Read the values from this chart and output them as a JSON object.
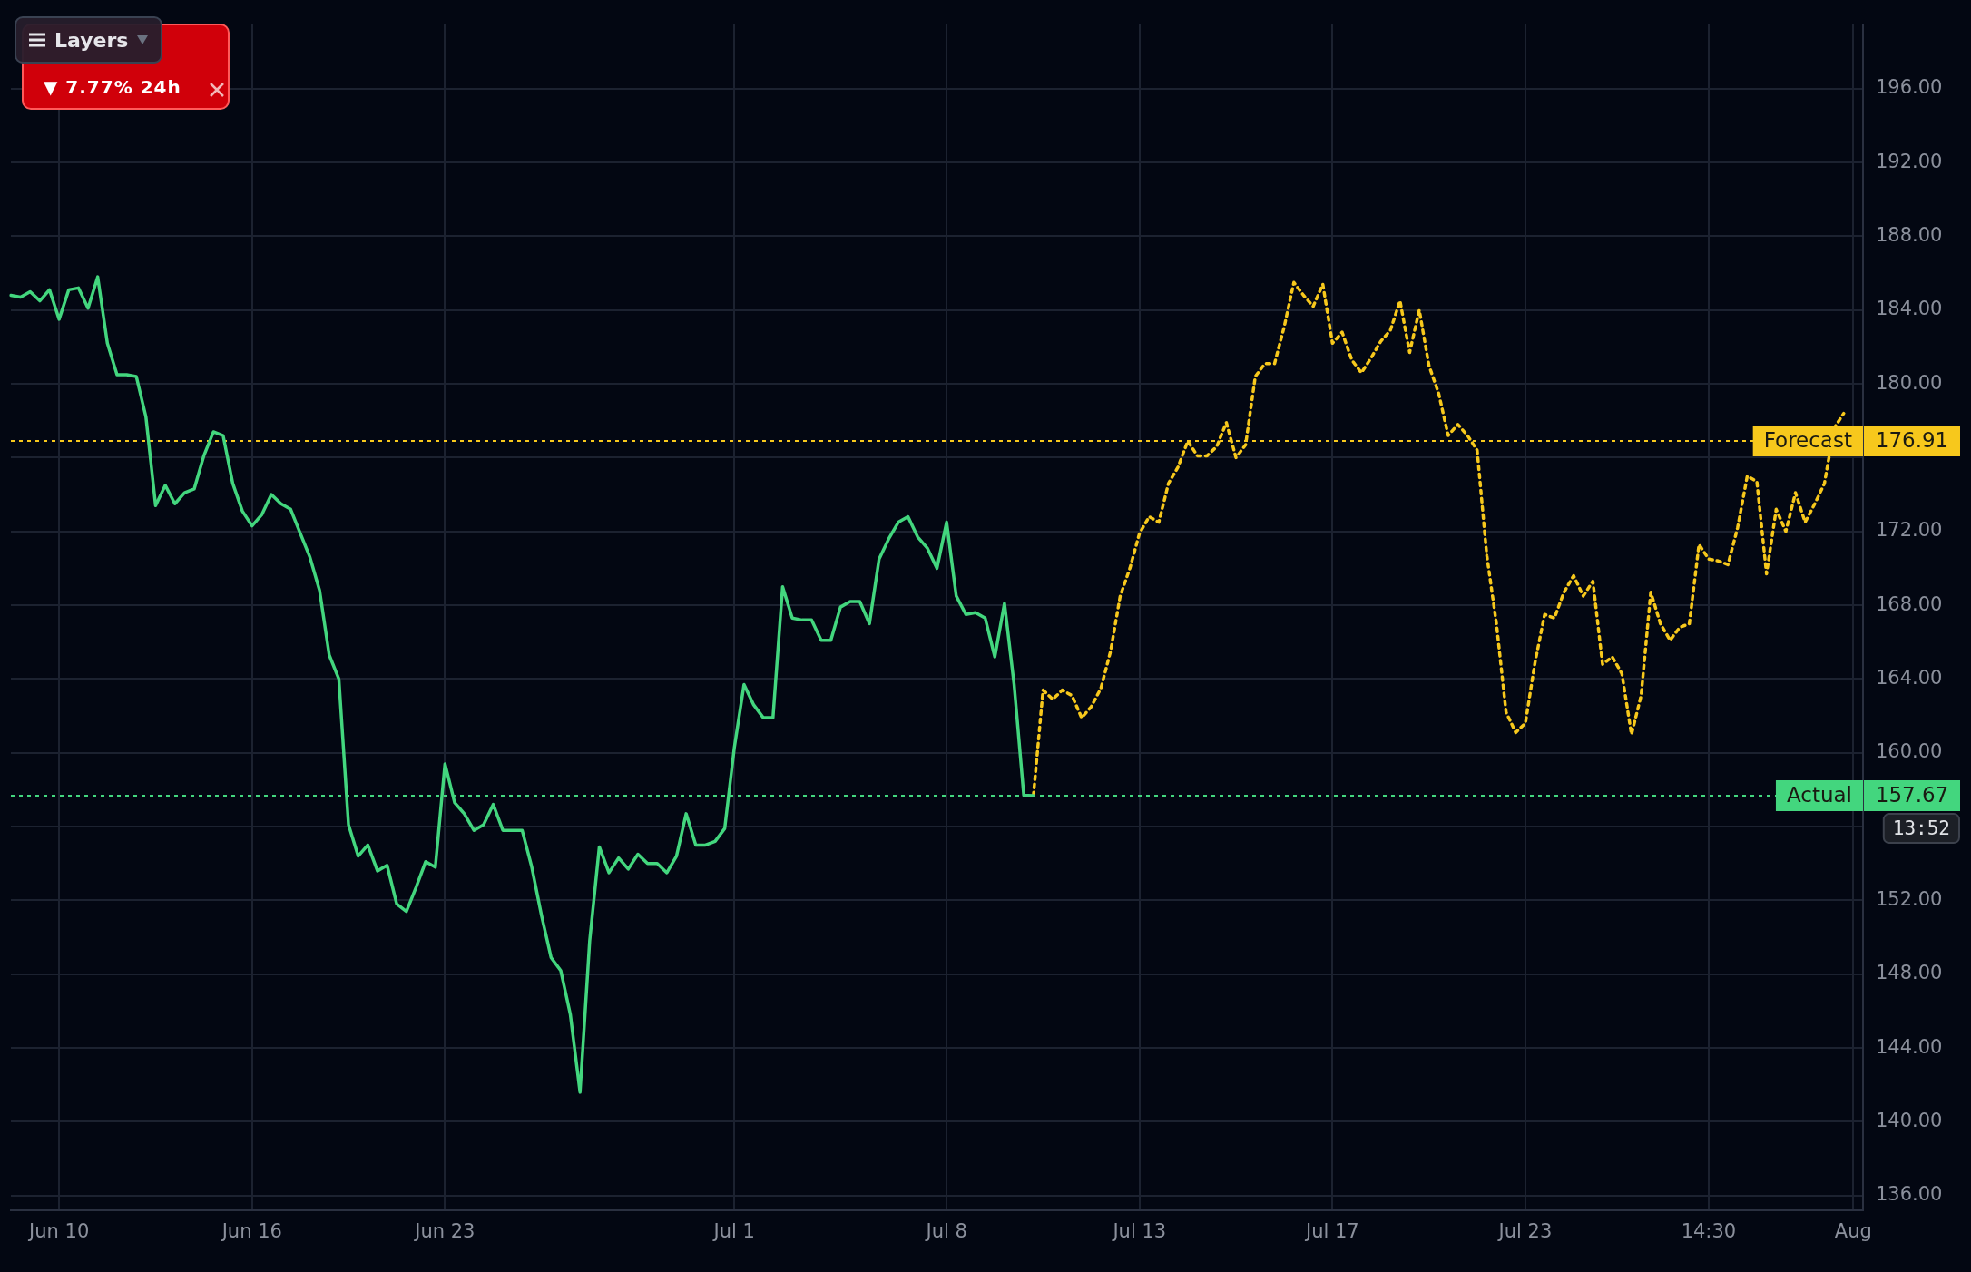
{
  "chart_data": {
    "type": "line",
    "categories": [
      null,
      null,
      null,
      null,
      null,
      "Jun 10",
      null,
      null,
      null,
      null,
      null,
      null,
      null,
      null,
      null,
      null,
      null,
      null,
      null,
      null,
      null,
      null,
      null,
      null,
      null,
      "Jun 16",
      null,
      null,
      null,
      null,
      null,
      null,
      null,
      null,
      null,
      null,
      null,
      null,
      null,
      null,
      null,
      null,
      null,
      null,
      null,
      "Jun 23",
      null,
      null,
      null,
      null,
      null,
      null,
      null,
      null,
      null,
      null,
      null,
      null,
      null,
      null,
      null,
      null,
      null,
      null,
      null,
      null,
      null,
      null,
      null,
      null,
      null,
      null,
      null,
      null,
      null,
      "Jul 1",
      null,
      null,
      null,
      null,
      null,
      null,
      null,
      null,
      null,
      null,
      null,
      null,
      null,
      null,
      null,
      null,
      null,
      null,
      null,
      null,
      null,
      "Jul 8",
      null,
      null,
      null,
      null,
      null,
      null,
      null,
      null,
      null,
      null,
      null,
      null,
      null,
      null,
      null,
      null,
      null,
      null,
      null,
      "Jul 13",
      null,
      null,
      null,
      null,
      null,
      null,
      null,
      null,
      null,
      null,
      null,
      null,
      null,
      null,
      null,
      null,
      null,
      null,
      null,
      "Jul 17",
      null,
      null,
      null,
      null,
      null,
      null,
      null,
      null,
      null,
      null,
      null,
      null,
      null,
      null,
      null,
      null,
      null,
      null,
      null,
      "Jul 23",
      null,
      null,
      null,
      null,
      null,
      null,
      null,
      null,
      null,
      null,
      null,
      null,
      null,
      null,
      null,
      null,
      null,
      null,
      "14:30",
      null,
      null,
      null,
      null,
      null,
      null,
      null,
      null,
      null,
      null,
      null,
      null,
      null,
      null,
      "Aug",
      null
    ],
    "series": [
      {
        "name": "Actual",
        "color": "#43d67e",
        "line_style": "solid",
        "values": [
          184.8,
          184.7,
          185.0,
          184.5,
          185.1,
          183.5,
          185.1,
          185.2,
          184.1,
          185.8,
          182.2,
          180.5,
          180.5,
          180.4,
          178.2,
          173.4,
          174.5,
          173.5,
          174.1,
          174.3,
          176.1,
          177.4,
          177.2,
          174.6,
          173.1,
          172.3,
          172.9,
          174.0,
          173.5,
          173.2,
          171.9,
          170.6,
          168.8,
          165.3,
          164.0,
          156.1,
          154.4,
          155.0,
          153.6,
          153.9,
          151.8,
          151.4,
          152.7,
          154.1,
          153.8,
          159.4,
          157.3,
          156.7,
          155.8,
          156.1,
          157.2,
          155.8,
          155.8,
          155.8,
          153.8,
          151.2,
          148.9,
          148.2,
          145.8,
          141.6,
          149.8,
          154.9,
          153.5,
          154.3,
          153.7,
          154.5,
          154.0,
          154.0,
          153.5,
          154.4,
          156.7,
          155.0,
          155.0,
          155.2,
          155.9,
          160.3,
          163.7,
          162.6,
          161.9,
          161.9,
          169.0,
          167.3,
          167.2,
          167.2,
          166.1,
          166.1,
          167.9,
          168.2,
          168.2,
          167.0,
          170.5,
          171.6,
          172.5,
          172.8,
          171.7,
          171.1,
          170.0,
          172.5,
          168.5,
          167.5,
          167.6,
          167.3,
          165.2,
          168.1,
          163.7,
          157.7,
          157.67,
          null,
          null,
          null,
          null,
          null,
          null,
          null,
          null,
          null,
          null,
          null,
          null,
          null,
          null,
          null,
          null,
          null,
          null,
          null,
          null,
          null,
          null,
          null,
          null,
          null,
          null,
          null,
          null,
          null,
          null,
          null,
          null,
          null,
          null,
          null,
          null,
          null,
          null,
          null,
          null,
          null,
          null,
          null,
          null,
          null,
          null,
          null,
          null,
          null,
          null,
          null,
          null,
          null,
          null,
          null,
          null,
          null,
          null,
          null,
          null,
          null,
          null,
          null,
          null,
          null,
          null,
          null,
          null,
          null,
          null,
          null,
          null,
          null,
          null,
          null,
          null,
          null,
          null,
          null,
          null,
          null,
          null,
          null,
          null,
          null,
          null
        ]
      },
      {
        "name": "Forecast",
        "color": "#f7c81c",
        "line_style": "dotted",
        "values": [
          null,
          null,
          null,
          null,
          null,
          null,
          null,
          null,
          null,
          null,
          null,
          null,
          null,
          null,
          null,
          null,
          null,
          null,
          null,
          null,
          null,
          null,
          null,
          null,
          null,
          null,
          null,
          null,
          null,
          null,
          null,
          null,
          null,
          null,
          null,
          null,
          null,
          null,
          null,
          null,
          null,
          null,
          null,
          null,
          null,
          null,
          null,
          null,
          null,
          null,
          null,
          null,
          null,
          null,
          null,
          null,
          null,
          null,
          null,
          null,
          null,
          null,
          null,
          null,
          null,
          null,
          null,
          null,
          null,
          null,
          null,
          null,
          null,
          null,
          null,
          null,
          null,
          null,
          null,
          null,
          null,
          null,
          null,
          null,
          null,
          null,
          null,
          null,
          null,
          null,
          null,
          null,
          null,
          null,
          null,
          null,
          null,
          null,
          null,
          null,
          null,
          null,
          null,
          null,
          null,
          null,
          157.67,
          163.4,
          162.9,
          163.4,
          163.1,
          161.9,
          162.5,
          163.5,
          165.5,
          168.5,
          170.0,
          171.9,
          172.8,
          172.5,
          174.6,
          175.5,
          176.9,
          176.1,
          176.1,
          176.6,
          177.9,
          176.0,
          176.7,
          180.4,
          181.1,
          181.1,
          183.1,
          185.5,
          184.8,
          184.2,
          185.4,
          182.2,
          182.8,
          181.3,
          180.6,
          181.4,
          182.3,
          182.9,
          184.5,
          181.7,
          184.0,
          181.0,
          179.5,
          177.2,
          177.8,
          177.2,
          176.4,
          170.7,
          167.0,
          162.2,
          161.1,
          161.6,
          164.9,
          167.5,
          167.3,
          168.7,
          169.6,
          168.5,
          169.3,
          164.8,
          165.2,
          164.3,
          161.0,
          163.1,
          168.7,
          167.0,
          166.1,
          166.8,
          167.0,
          171.3,
          170.5,
          170.4,
          170.2,
          172.2,
          175.0,
          174.7,
          169.7,
          173.2,
          172.0,
          174.1,
          172.5,
          173.5,
          174.6,
          177.6,
          178.4,
          null,
          null
        ]
      }
    ],
    "ylim": [
      135.2,
      199.5
    ],
    "yticks": [
      {
        "value": 136,
        "label": "136.00"
      },
      {
        "value": 140,
        "label": "140.00"
      },
      {
        "value": 144,
        "label": "144.00"
      },
      {
        "value": 148,
        "label": "148.00"
      },
      {
        "value": 152,
        "label": "152.00"
      },
      {
        "value": 156,
        "label": null
      },
      {
        "value": 160,
        "label": "160.00"
      },
      {
        "value": 164,
        "label": "164.00"
      },
      {
        "value": 168,
        "label": "168.00"
      },
      {
        "value": 172,
        "label": "172.00"
      },
      {
        "value": 176,
        "label": null
      },
      {
        "value": 180,
        "label": "180.00"
      },
      {
        "value": 184,
        "label": "184.00"
      },
      {
        "value": 188,
        "label": "188.00"
      },
      {
        "value": 192,
        "label": "192.00"
      },
      {
        "value": 196,
        "label": "196.00"
      }
    ],
    "ref_lines": [
      {
        "axis": "y",
        "value": 157.67,
        "label": "157.67",
        "color": "#43d67e",
        "line_style": "dotted"
      },
      {
        "axis": "y",
        "value": 176.91,
        "label": "176.91",
        "color": "#f7c81c",
        "line_style": "dotted"
      }
    ],
    "annotations": [
      "▼ 7.77% 24h",
      "13:52",
      "Layers"
    ],
    "grid": true,
    "legend": "right",
    "marker": "none"
  }
}
